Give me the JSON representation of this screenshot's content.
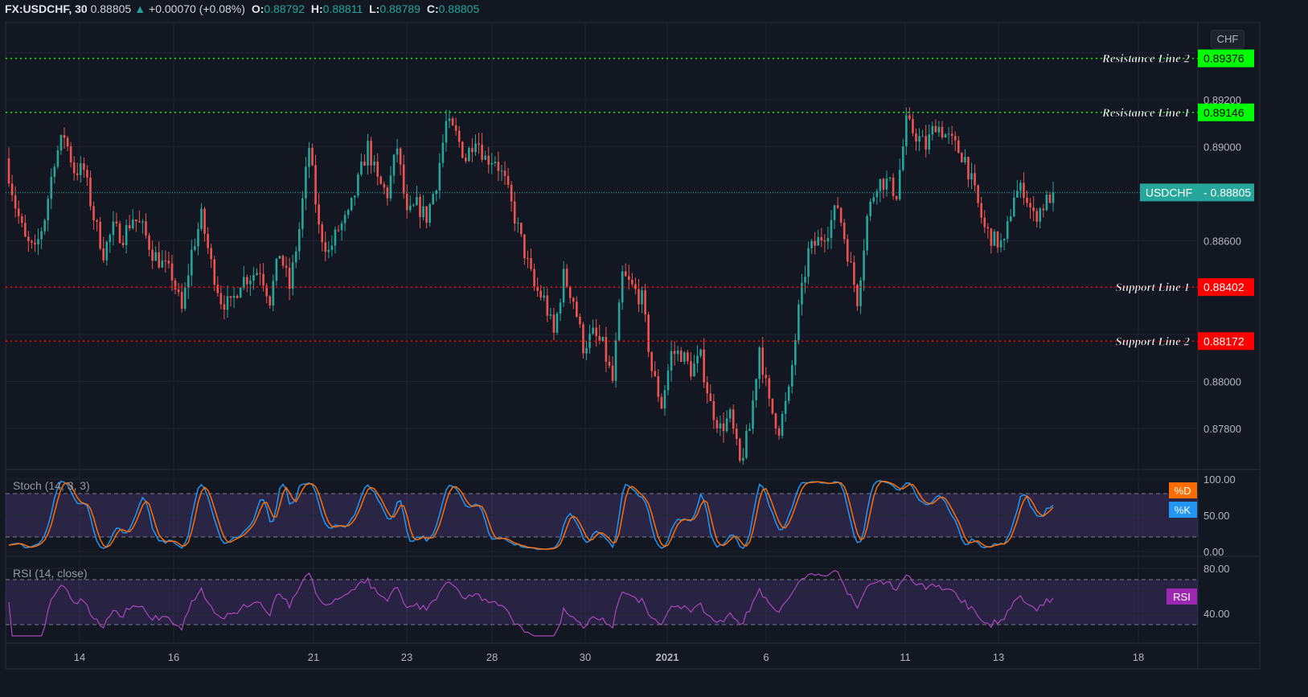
{
  "header": {
    "symbol": "FX:USDCHF, 30",
    "last": "0.88805",
    "change_arrow": "▲",
    "change": "+0.00070 (+0.08%)",
    "o_label": "O:",
    "o": "0.88792",
    "h_label": "H:",
    "h": "0.88811",
    "l_label": "L:",
    "l": "0.88789",
    "c_label": "C:",
    "c": "0.88805"
  },
  "currency_button": "CHF",
  "colors": {
    "background": "#131722",
    "up": "#26a69a",
    "down": "#ef5350",
    "resistance": "#00ff00",
    "support": "#ff0000",
    "stoch_k": "#2196f3",
    "stoch_d": "#ff6d00",
    "rsi": "#ab47bc",
    "band": "#7e57c2"
  },
  "chart_data": [
    {
      "type": "candlestick",
      "symbol": "USDCHF",
      "interval": "30",
      "close": [
        0.8895,
        0.8875,
        0.886,
        0.8855,
        0.887,
        0.8895,
        0.8905,
        0.889,
        0.889,
        0.887,
        0.8855,
        0.8865,
        0.8862,
        0.887,
        0.8865,
        0.8855,
        0.885,
        0.8845,
        0.883,
        0.8855,
        0.887,
        0.885,
        0.8835,
        0.8832,
        0.8843,
        0.8845,
        0.8848,
        0.8835,
        0.8855,
        0.884,
        0.8865,
        0.89,
        0.8865,
        0.8855,
        0.8865,
        0.887,
        0.8885,
        0.89,
        0.8885,
        0.888,
        0.89,
        0.887,
        0.8875,
        0.887,
        0.8885,
        0.891,
        0.8905,
        0.8895,
        0.8905,
        0.8895,
        0.8895,
        0.8885,
        0.887,
        0.8855,
        0.884,
        0.8835,
        0.882,
        0.8845,
        0.8835,
        0.8815,
        0.882,
        0.8815,
        0.88,
        0.8845,
        0.884,
        0.8835,
        0.8805,
        0.879,
        0.8812,
        0.8812,
        0.8805,
        0.881,
        0.879,
        0.878,
        0.8785,
        0.8765,
        0.878,
        0.8815,
        0.879,
        0.878,
        0.8795,
        0.883,
        0.8855,
        0.886,
        0.8865,
        0.8875,
        0.8855,
        0.8835,
        0.887,
        0.8885,
        0.8885,
        0.888,
        0.891,
        0.8905,
        0.89,
        0.891,
        0.8905,
        0.89,
        0.8895,
        0.888,
        0.8865,
        0.886,
        0.8858,
        0.888,
        0.8882,
        0.887,
        0.8875,
        0.88805
      ],
      "y_ticks": [
        "0.89200",
        "0.89000",
        "0.88600",
        "0.88000",
        "0.87800"
      ],
      "x_ticks": [
        "14",
        "16",
        "21",
        "23",
        "28",
        "30",
        "2021",
        "6",
        "11",
        "13",
        "18"
      ],
      "ylim": [
        0.8765,
        0.895
      ],
      "grid": true,
      "last_price_tag": {
        "label": "USDCHF",
        "value": "0.88805",
        "price": 0.88805
      },
      "horizontal_lines": [
        {
          "name": "Resistance Line 2",
          "price": 0.89376,
          "value": "0.89376",
          "kind": "resistance"
        },
        {
          "name": "Resistance Line 1",
          "price": 0.89146,
          "value": "0.89146",
          "kind": "resistance"
        },
        {
          "name": "Support Line 1",
          "price": 0.88402,
          "value": "0.88402",
          "kind": "support"
        },
        {
          "name": "Support Line 2",
          "price": 0.88172,
          "value": "0.88172",
          "kind": "support"
        }
      ]
    },
    {
      "type": "line",
      "title": "Stoch (14, 3, 3)",
      "series": [
        {
          "name": "%K"
        },
        {
          "name": "%D"
        }
      ],
      "ylim": [
        0,
        100
      ],
      "band": [
        20,
        80
      ],
      "y_ticks": [
        "100.00",
        "50.00",
        "0.00"
      ]
    },
    {
      "type": "line",
      "title": "RSI (14, close)",
      "series": [
        {
          "name": "RSI"
        }
      ],
      "band": [
        30,
        70
      ],
      "y_ticks": [
        "80.00",
        "40.00"
      ]
    }
  ]
}
